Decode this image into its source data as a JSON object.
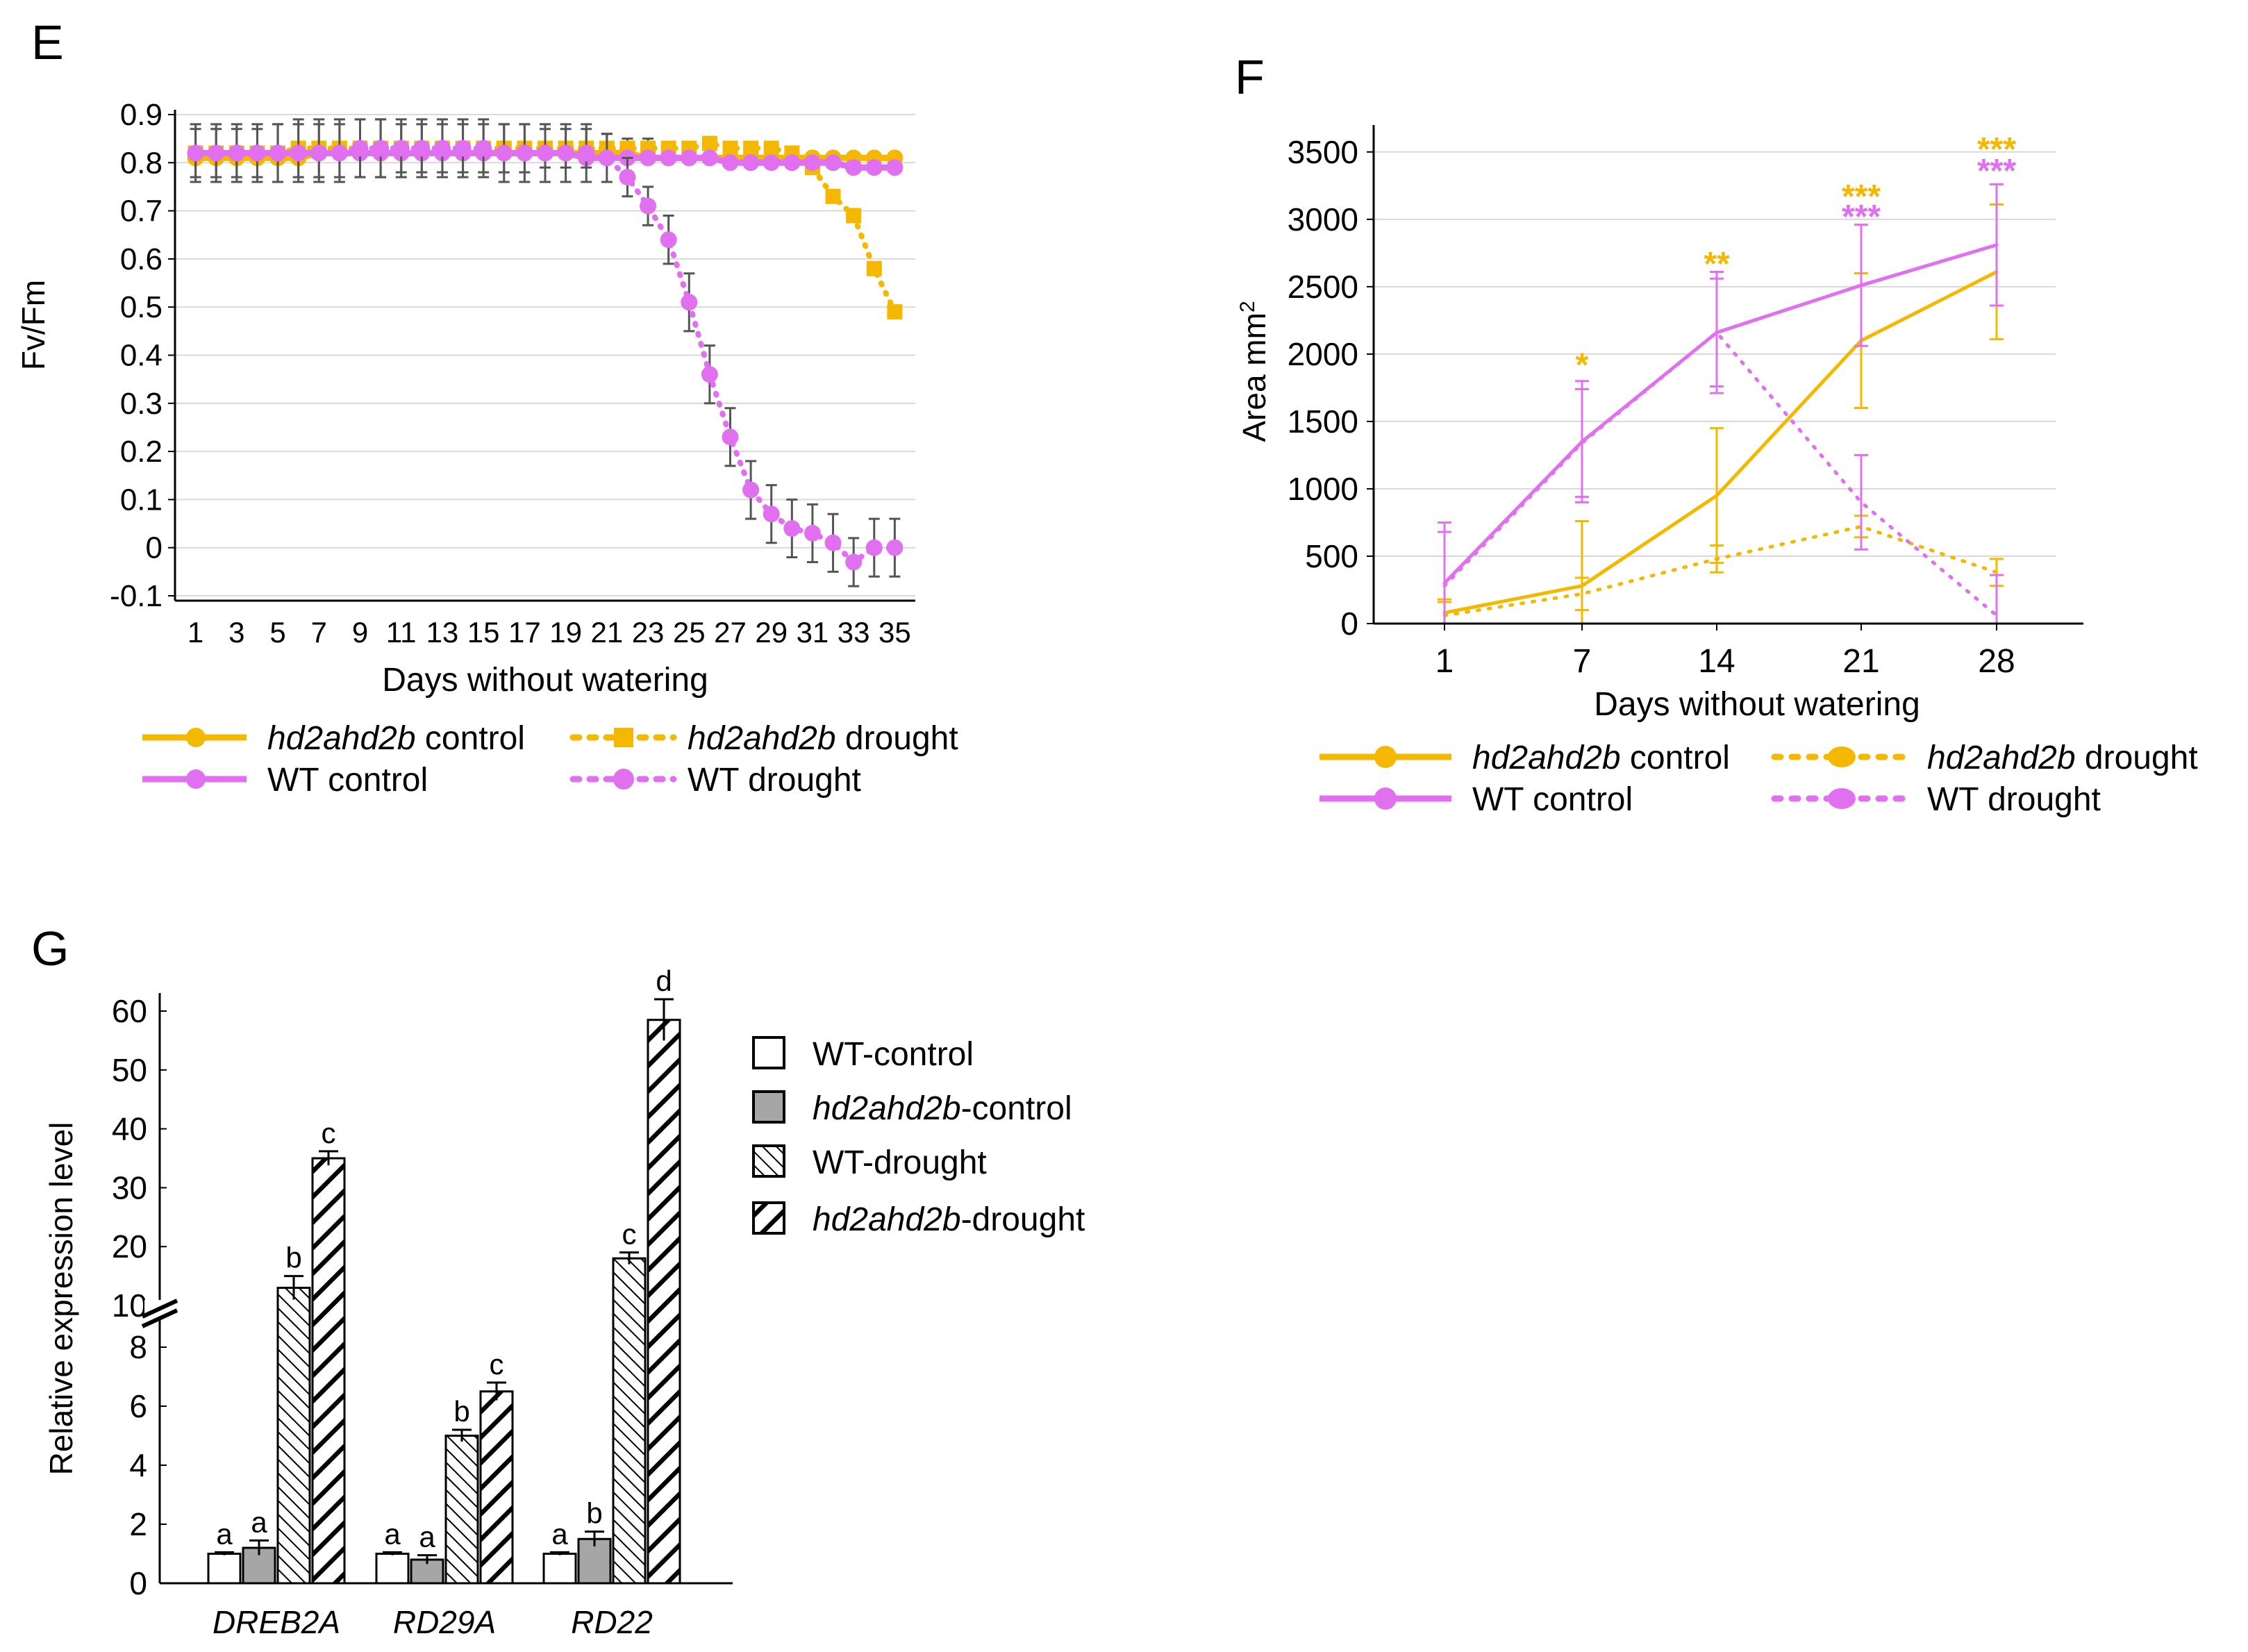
{
  "chart_data": [
    {
      "panel_label": "E",
      "type": "line",
      "title": "",
      "xlabel": "Days without watering",
      "ylabel": "Fv/Fm",
      "ylim": [
        -0.1,
        0.9
      ],
      "yticks": [
        "-0.1",
        "0",
        "0.1",
        "0.2",
        "0.3",
        "0.4",
        "0.5",
        "0.6",
        "0.7",
        "0.8",
        "0.9"
      ],
      "xlim": [
        0,
        36
      ],
      "xticks": [
        "1",
        "3",
        "5",
        "7",
        "9",
        "11",
        "13",
        "15",
        "17",
        "19",
        "21",
        "23",
        "25",
        "27",
        "29",
        "31",
        "33",
        "35"
      ],
      "grid": true,
      "x": [
        1,
        2,
        3,
        4,
        5,
        6,
        7,
        8,
        9,
        10,
        11,
        12,
        13,
        14,
        15,
        16,
        17,
        18,
        19,
        20,
        21,
        22,
        23,
        24,
        25,
        26,
        27,
        28,
        29,
        30,
        31,
        32,
        33,
        34,
        35
      ],
      "series": [
        {
          "name": "hd2ahd2b control",
          "color": "#f5b800",
          "dash": "solid",
          "values": [
            0.81,
            0.81,
            0.81,
            0.81,
            0.81,
            0.81,
            0.82,
            0.82,
            0.82,
            0.82,
            0.82,
            0.82,
            0.82,
            0.82,
            0.82,
            0.82,
            0.82,
            0.82,
            0.82,
            0.82,
            0.82,
            0.82,
            0.81,
            0.81,
            0.81,
            0.81,
            0.81,
            0.81,
            0.81,
            0.81,
            0.81,
            0.81,
            0.81,
            0.81,
            0.81
          ]
        },
        {
          "name": "hd2ahd2b drought",
          "color": "#f5b800",
          "dash": "dotted",
          "values": [
            0.82,
            0.82,
            0.82,
            0.82,
            0.82,
            0.83,
            0.83,
            0.83,
            0.83,
            0.83,
            0.83,
            0.83,
            0.83,
            0.83,
            0.83,
            0.83,
            0.83,
            0.83,
            0.83,
            0.83,
            0.83,
            0.83,
            0.83,
            0.83,
            0.83,
            0.84,
            0.83,
            0.83,
            0.83,
            0.82,
            0.79,
            0.73,
            0.69,
            0.58,
            0.49
          ],
          "err": [
            0.06,
            0.06,
            0.06,
            0.06,
            0.06,
            0.06,
            0.06,
            0.06,
            0.06,
            0.06,
            0.05,
            0.05,
            0.05,
            0.05,
            0.05,
            0.05,
            0.05,
            0.04,
            0.04,
            0.04,
            0.03,
            0.02,
            0.02,
            0.01,
            0.01,
            0.01,
            0.01,
            0.01,
            0.01,
            0.01,
            0.01,
            0.01,
            0.01,
            0.01,
            0.01
          ]
        },
        {
          "name": "WT control",
          "color": "#e070f0",
          "dash": "solid",
          "values": [
            0.82,
            0.82,
            0.82,
            0.82,
            0.82,
            0.82,
            0.82,
            0.82,
            0.82,
            0.82,
            0.82,
            0.82,
            0.82,
            0.82,
            0.82,
            0.82,
            0.82,
            0.82,
            0.82,
            0.81,
            0.81,
            0.81,
            0.81,
            0.81,
            0.81,
            0.81,
            0.8,
            0.8,
            0.8,
            0.8,
            0.8,
            0.8,
            0.79,
            0.79,
            0.79
          ]
        },
        {
          "name": "WT drought",
          "color": "#e070f0",
          "dash": "dotted",
          "values": [
            0.82,
            0.82,
            0.82,
            0.82,
            0.82,
            0.82,
            0.82,
            0.82,
            0.83,
            0.83,
            0.83,
            0.83,
            0.83,
            0.83,
            0.83,
            0.82,
            0.82,
            0.82,
            0.82,
            0.82,
            0.81,
            0.77,
            0.71,
            0.64,
            0.51,
            0.36,
            0.23,
            0.12,
            0.07,
            0.04,
            0.03,
            0.01,
            -0.03,
            0.0,
            0.0
          ],
          "err": [
            0.05,
            0.05,
            0.05,
            0.05,
            0.06,
            0.06,
            0.06,
            0.06,
            0.06,
            0.06,
            0.06,
            0.06,
            0.06,
            0.06,
            0.06,
            0.06,
            0.06,
            0.06,
            0.06,
            0.06,
            0.05,
            0.04,
            0.04,
            0.05,
            0.06,
            0.06,
            0.06,
            0.06,
            0.06,
            0.06,
            0.06,
            0.06,
            0.05,
            0.06,
            0.06
          ]
        }
      ]
    },
    {
      "panel_label": "F",
      "type": "line",
      "title": "",
      "xlabel": "Days without watering",
      "ylabel": "Area mm²",
      "ylabel_main": "Area mm",
      "ylabel_sup": "2",
      "ylim": [
        0,
        3700
      ],
      "yticks": [
        "0",
        "500",
        "1000",
        "1500",
        "2000",
        "2500",
        "3000",
        "3500"
      ],
      "categories": [
        "1",
        "7",
        "14",
        "21",
        "28"
      ],
      "grid": true,
      "series": [
        {
          "name": "hd2ahd2b control",
          "color": "#f5b800",
          "dash": "solid",
          "values": [
            80,
            280,
            950,
            2100,
            2610
          ],
          "err": [
            100,
            480,
            500,
            500,
            500
          ]
        },
        {
          "name": "hd2ahd2b drought",
          "color": "#f5b800",
          "dash": "dotted",
          "values": [
            60,
            220,
            480,
            720,
            380
          ],
          "err": [
            100,
            120,
            100,
            80,
            100
          ]
        },
        {
          "name": "WT control",
          "color": "#e070f0",
          "dash": "solid",
          "values": [
            300,
            1350,
            2160,
            2510,
            2810
          ],
          "err": [
            450,
            450,
            450,
            450,
            450
          ]
        },
        {
          "name": "WT drought",
          "color": "#e070f0",
          "dash": "dotted",
          "values": [
            280,
            1340,
            2160,
            900,
            60
          ],
          "err": [
            400,
            400,
            400,
            350,
            300
          ]
        }
      ],
      "annotations": [
        {
          "category": "7",
          "text": "*",
          "color": "#f5b800",
          "y": 1950
        },
        {
          "category": "14",
          "text": "**",
          "color": "#f5b800",
          "y": 2700
        },
        {
          "category": "21",
          "text": "***",
          "color": "#f5b800",
          "y": 3200
        },
        {
          "category": "21",
          "text": "***",
          "color": "#e070f0",
          "y": 3050
        },
        {
          "category": "28",
          "text": "***",
          "color": "#f5b800",
          "y": 3550
        },
        {
          "category": "28",
          "text": "***",
          "color": "#e070f0",
          "y": 3390
        }
      ]
    },
    {
      "panel_label": "G",
      "type": "bar",
      "title": "",
      "xlabel": "",
      "ylabel": "Relative expression level",
      "axis_break": "between 8 and 10",
      "ylim_lower": [
        0,
        8
      ],
      "ylim_upper": [
        10,
        60
      ],
      "yticks_lower": [
        "0",
        "2",
        "4",
        "6",
        "8"
      ],
      "yticks_upper": [
        "10",
        "20",
        "30",
        "40",
        "50",
        "60"
      ],
      "categories": [
        "DREB2A",
        "RD29A",
        "RD22"
      ],
      "series": [
        {
          "name": "WT-control",
          "values": [
            1.0,
            1.0,
            1.0
          ],
          "err": [
            0.05,
            0.05,
            0.05
          ],
          "letters": [
            "a",
            "a",
            "a"
          ]
        },
        {
          "name": "hd2ahd2b-control",
          "values": [
            1.2,
            0.8,
            1.5
          ],
          "err": [
            0.25,
            0.15,
            0.25
          ],
          "letters": [
            "a",
            "a",
            "b"
          ]
        },
        {
          "name": "WT-drought",
          "values": [
            13,
            5.0,
            18
          ],
          "err": [
            2.0,
            0.2,
            1.0
          ],
          "letters": [
            "b",
            "b",
            "c"
          ]
        },
        {
          "name": "hd2ahd2b-drought",
          "values": [
            35,
            6.5,
            58.5
          ],
          "err": [
            1.2,
            0.3,
            3.5
          ],
          "letters": [
            "c",
            "c",
            "d"
          ]
        }
      ]
    }
  ],
  "legend_e": {
    "hd2_control": {
      "italic": "hd2ahd2b",
      "rest": " control"
    },
    "hd2_drought": {
      "italic": "hd2ahd2b",
      "rest": " drought"
    },
    "wt_control": "WT control",
    "wt_drought": "WT drought"
  },
  "legend_f": {
    "hd2_control": {
      "italic": "hd2ahd2b",
      "rest": " control"
    },
    "hd2_drought": {
      "italic": "hd2ahd2b",
      "rest": " drought"
    },
    "wt_control": "WT control",
    "wt_drought": "WT drought"
  },
  "legend_g": {
    "wt_control": "WT-control",
    "hd2_control": {
      "italic": "hd2ahd2b",
      "rest": "-control"
    },
    "wt_drought": "WT-drought",
    "hd2_drought": {
      "italic": "hd2ahd2b",
      "rest": "-drought"
    }
  },
  "colors": {
    "yellow": "#f5b800",
    "magenta": "#e070f0",
    "grid": "#d9d9d9",
    "errbar": "#333333"
  }
}
